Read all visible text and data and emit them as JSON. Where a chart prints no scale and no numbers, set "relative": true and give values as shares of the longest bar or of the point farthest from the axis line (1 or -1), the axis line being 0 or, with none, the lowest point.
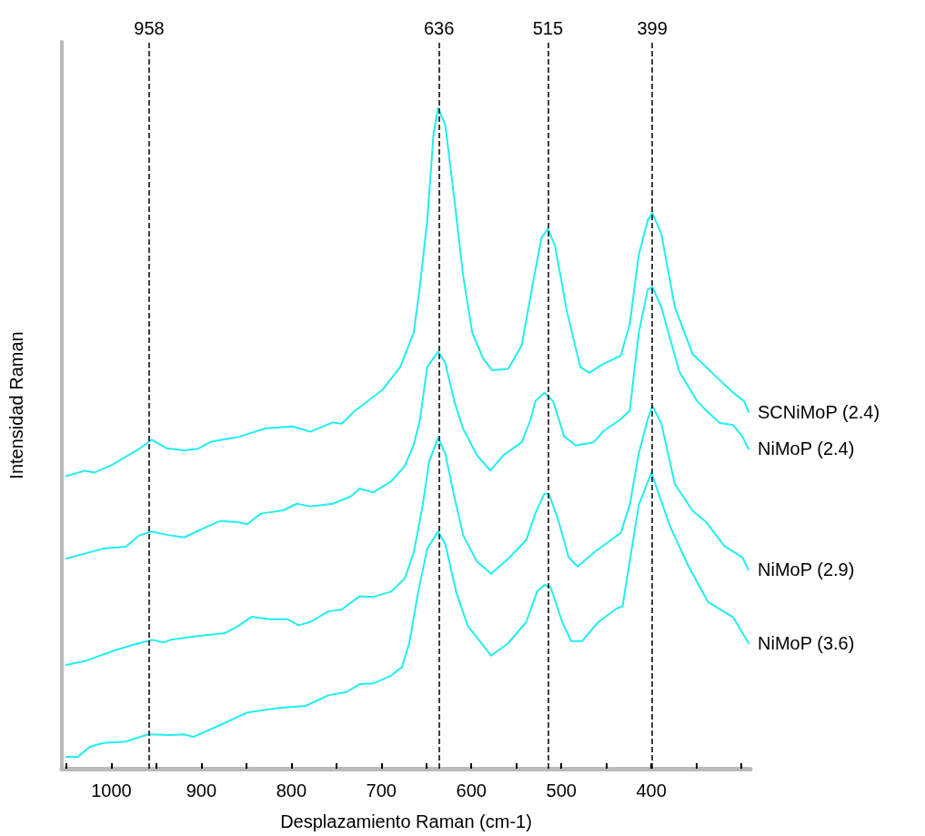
{
  "chart_data": {
    "type": "line",
    "xlabel": "Desplazamiento Raman (cm-1)",
    "ylabel": "Intensidad Raman",
    "relative": true,
    "legend": false,
    "grid": false,
    "marker": "none",
    "line_style": "solid",
    "xlim": [
      1055,
      290
    ],
    "xticks": [
      {
        "value": 1050,
        "label": null
      },
      1000,
      {
        "value": 950,
        "label": null
      },
      900,
      {
        "value": 850,
        "label": null
      },
      800,
      {
        "value": 750,
        "label": null
      },
      700,
      {
        "value": 650,
        "label": null
      },
      600,
      {
        "value": 550,
        "label": null
      },
      500,
      {
        "value": 450,
        "label": null
      },
      400,
      {
        "value": 350,
        "label": null
      },
      {
        "value": 300,
        "label": null
      }
    ],
    "ref_lines": [
      {
        "axis": "x",
        "value": 958,
        "label": "958",
        "line_style": "dashed",
        "color": "#000000"
      },
      {
        "axis": "x",
        "value": 636,
        "label": "636",
        "line_style": "dashed",
        "color": "#000000"
      },
      {
        "axis": "x",
        "value": 515,
        "label": "515",
        "line_style": "dashed",
        "color": "#000000"
      },
      {
        "axis": "x",
        "value": 399,
        "label": "399",
        "line_style": "dashed",
        "color": "#000000"
      }
    ],
    "series": [
      {
        "name": "SCNiMoP (2.4)",
        "color": "#22eeee",
        "x": [
          1050,
          1029,
          1019,
          999,
          984,
          969,
          955,
          939,
          919,
          904,
          889,
          859,
          829,
          799,
          779,
          754,
          744,
          729,
          699,
          679,
          664,
          657,
          649,
          642,
          637,
          629,
          619,
          609,
          599,
          587,
          577,
          559,
          544,
          532,
          522,
          515,
          507,
          494,
          479,
          469,
          454,
          434,
          424,
          414,
          404,
          399,
          389,
          374,
          354,
          324,
          309,
          297,
          292
        ],
        "values": [
          0.443,
          0.451,
          0.448,
          0.46,
          0.472,
          0.484,
          0.498,
          0.485,
          0.482,
          0.484,
          0.495,
          0.502,
          0.515,
          0.518,
          0.51,
          0.524,
          0.522,
          0.542,
          0.573,
          0.608,
          0.66,
          0.732,
          0.83,
          0.961,
          1.0,
          0.974,
          0.863,
          0.745,
          0.66,
          0.621,
          0.603,
          0.605,
          0.641,
          0.732,
          0.804,
          0.817,
          0.791,
          0.693,
          0.608,
          0.599,
          0.612,
          0.625,
          0.673,
          0.778,
          0.83,
          0.841,
          0.81,
          0.699,
          0.627,
          0.588,
          0.569,
          0.556,
          0.54
        ]
      },
      {
        "name": "NiMoP (2.4)",
        "color": "#22eeee",
        "x": [
          1050,
          1009,
          984,
          969,
          955,
          939,
          919,
          899,
          879,
          859,
          849,
          834,
          809,
          794,
          779,
          754,
          734,
          724,
          709,
          689,
          674,
          664,
          657,
          649,
          637,
          629,
          619,
          609,
          594,
          579,
          564,
          544,
          534,
          529,
          519,
          509,
          497,
          484,
          464,
          454,
          434,
          424,
          414,
          404,
          399,
          389,
          369,
          349,
          339,
          324,
          309,
          299,
          292
        ],
        "values": [
          0.318,
          0.333,
          0.336,
          0.353,
          0.359,
          0.354,
          0.35,
          0.363,
          0.375,
          0.373,
          0.37,
          0.386,
          0.391,
          0.401,
          0.397,
          0.401,
          0.412,
          0.424,
          0.418,
          0.435,
          0.458,
          0.49,
          0.529,
          0.608,
          0.631,
          0.614,
          0.556,
          0.514,
          0.475,
          0.451,
          0.475,
          0.494,
          0.529,
          0.556,
          0.569,
          0.556,
          0.503,
          0.489,
          0.494,
          0.51,
          0.529,
          0.542,
          0.66,
          0.725,
          0.729,
          0.699,
          0.601,
          0.556,
          0.542,
          0.523,
          0.52,
          0.503,
          0.484
        ]
      },
      {
        "name": "NiMoP (2.9)",
        "color": "#22eeee",
        "x": [
          1050,
          1029,
          994,
          969,
          954,
          942,
          934,
          909,
          874,
          859,
          844,
          824,
          804,
          792,
          779,
          759,
          744,
          724,
          709,
          689,
          674,
          664,
          654,
          647,
          637,
          629,
          619,
          609,
          594,
          578,
          559,
          539,
          529,
          519,
          514,
          504,
          492,
          482,
          464,
          434,
          424,
          414,
          404,
          399,
          389,
          374,
          354,
          339,
          319,
          299,
          292
        ],
        "values": [
          0.157,
          0.163,
          0.18,
          0.19,
          0.195,
          0.191,
          0.195,
          0.2,
          0.205,
          0.216,
          0.23,
          0.226,
          0.226,
          0.217,
          0.222,
          0.238,
          0.241,
          0.261,
          0.26,
          0.268,
          0.288,
          0.327,
          0.399,
          0.464,
          0.501,
          0.477,
          0.412,
          0.353,
          0.314,
          0.295,
          0.318,
          0.346,
          0.386,
          0.416,
          0.416,
          0.379,
          0.32,
          0.306,
          0.327,
          0.357,
          0.399,
          0.477,
          0.529,
          0.549,
          0.523,
          0.431,
          0.39,
          0.373,
          0.337,
          0.32,
          0.301
        ]
      },
      {
        "name": "NiMoP (3.6)",
        "color": "#22eeee",
        "x": [
          1050,
          1037,
          1024,
          1009,
          984,
          959,
          934,
          919,
          909,
          884,
          849,
          814,
          784,
          759,
          739,
          724,
          709,
          689,
          677,
          669,
          659,
          649,
          637,
          629,
          617,
          604,
          589,
          578,
          559,
          539,
          527,
          519,
          512,
          499,
          489,
          477,
          459,
          439,
          432,
          424,
          414,
          400,
          379,
          359,
          337,
          309,
          292
        ],
        "values": [
          0.018,
          0.018,
          0.033,
          0.039,
          0.041,
          0.052,
          0.051,
          0.052,
          0.048,
          0.063,
          0.085,
          0.092,
          0.095,
          0.111,
          0.116,
          0.128,
          0.129,
          0.141,
          0.154,
          0.19,
          0.268,
          0.333,
          0.359,
          0.34,
          0.268,
          0.216,
          0.19,
          0.171,
          0.19,
          0.222,
          0.268,
          0.278,
          0.275,
          0.222,
          0.193,
          0.193,
          0.222,
          0.242,
          0.246,
          0.314,
          0.399,
          0.448,
          0.366,
          0.307,
          0.252,
          0.229,
          0.19
        ]
      }
    ]
  }
}
